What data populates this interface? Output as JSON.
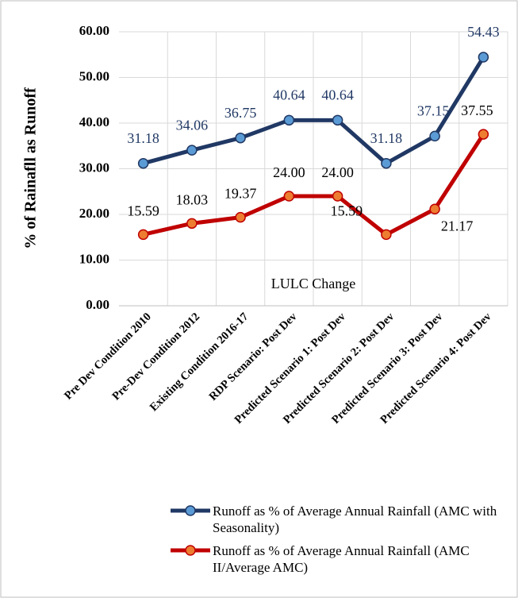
{
  "chart_data": {
    "type": "line",
    "ylabel": "% of Rainafll as Runoff",
    "annotation": "LULC Change",
    "categories": [
      "Pre Dev Condition 2010",
      "Pre-Dev Condition 2012",
      "Existing Condition 2016-17",
      "RDP Scenario: Post Dev",
      "Predicted Scenario 1: Post Dev",
      "Predicted Scenario 2: Post Dev",
      "Predicted Scenario 3: Post Dev",
      "Predicted Scenario 4: Post Dev"
    ],
    "series": [
      {
        "name": "Runoff as % of Average Annual Rainfall (AMC with Seasonality)",
        "color": "#203864",
        "marker_color": "#5b9bd5",
        "values": [
          31.18,
          34.06,
          36.75,
          40.64,
          40.64,
          31.18,
          37.15,
          54.43
        ],
        "value_labels": [
          "31.18",
          "34.06",
          "36.75",
          "40.64",
          "40.64",
          "31.18",
          "37.15",
          "54.43"
        ]
      },
      {
        "name": "Runoff as % of Average Annual Rainfall (AMC II/Average AMC)",
        "color": "#c00000",
        "marker_color": "#ed7d31",
        "values": [
          15.59,
          18.03,
          19.37,
          24.0,
          24.0,
          15.59,
          21.17,
          37.55
        ],
        "value_labels": [
          "15.59",
          "18.03",
          "19.37",
          "24.00",
          "24.00",
          "15.59",
          "21.17",
          "37.55"
        ]
      }
    ],
    "ylim": [
      0,
      60
    ],
    "yticks": [
      {
        "value": 0,
        "label": "0.00"
      },
      {
        "value": 10,
        "label": "10.00"
      },
      {
        "value": 20,
        "label": "20.00"
      },
      {
        "value": 30,
        "label": "30.00"
      },
      {
        "value": 40,
        "label": "40.00"
      },
      {
        "value": 50,
        "label": "50.00"
      },
      {
        "value": 60,
        "label": "60.00"
      }
    ],
    "grid": true
  }
}
